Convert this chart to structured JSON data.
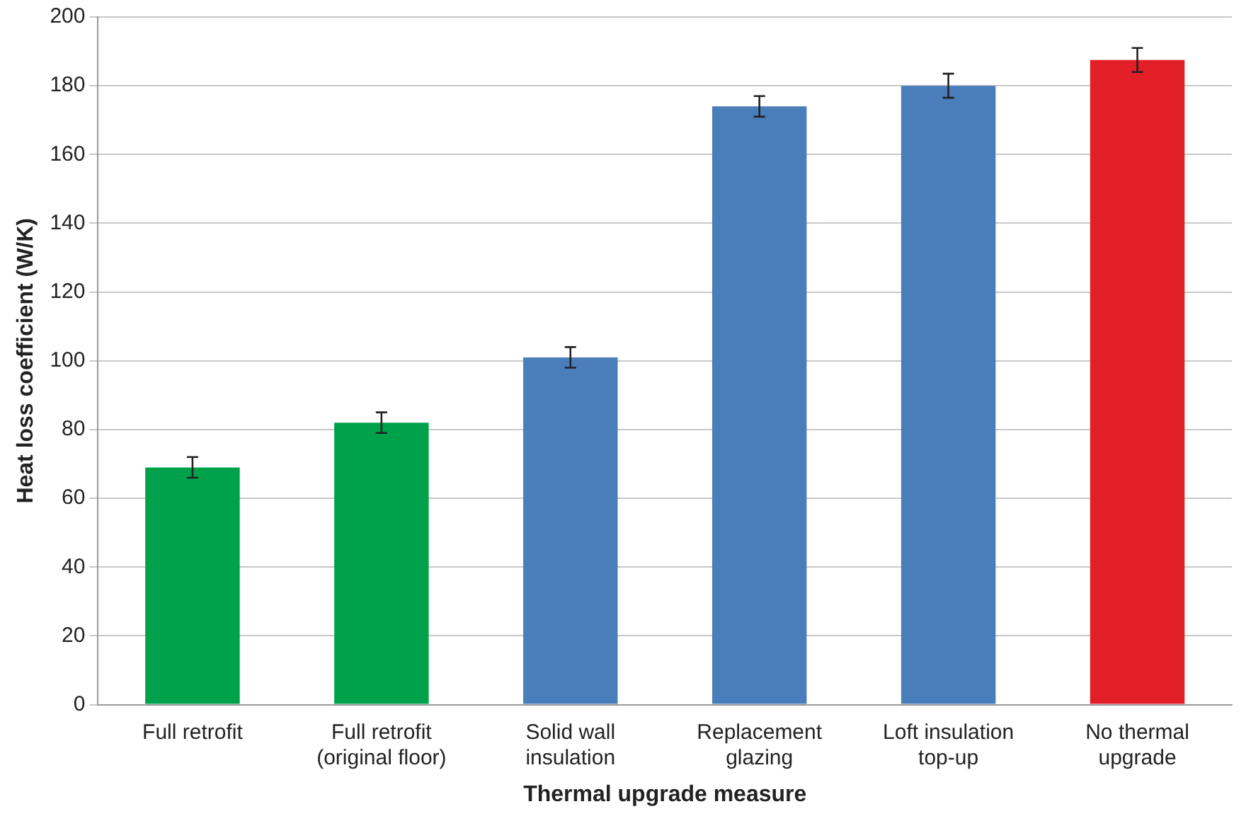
{
  "chart_data": {
    "type": "bar",
    "xlabel": "Thermal upgrade measure",
    "ylabel": "Heat loss coefficient (W/K)",
    "categories": [
      "Full retrofit",
      "Full retrofit (original floor)",
      "Solid wall insulation",
      "Replacement glazing",
      "Loft insulation top-up",
      "No thermal upgrade"
    ],
    "values": [
      69,
      82,
      101,
      174,
      180,
      187.5
    ],
    "errors": [
      3,
      3,
      3,
      3,
      3.5,
      3.5
    ],
    "colors": [
      "#00a14b",
      "#00a14b",
      "#4a7ebb",
      "#4a7ebb",
      "#4a7ebb",
      "#e21f26"
    ],
    "ylim": [
      0,
      200
    ],
    "yticks": [
      0,
      20,
      40,
      60,
      80,
      100,
      120,
      140,
      160,
      180,
      200
    ],
    "grid": "y"
  }
}
